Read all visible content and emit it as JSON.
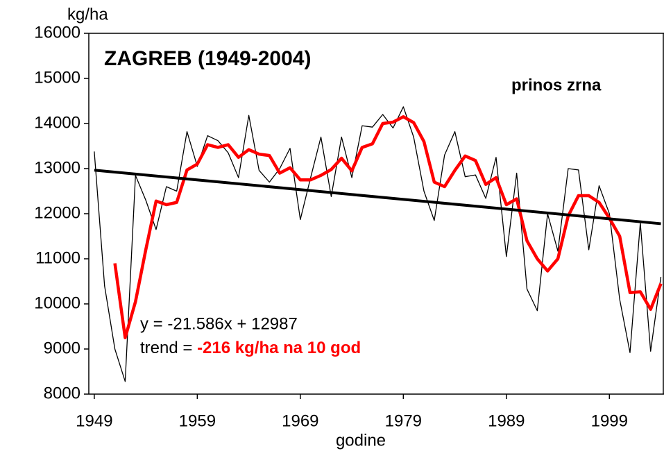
{
  "chart_data": {
    "type": "line",
    "title": "ZAGREB (1949-2004)",
    "y_label": "kg/ha",
    "x_label": "godine",
    "annotation": "prinos zrna",
    "equation": "y = -21.586x + 12987",
    "trend_label": "trend = ",
    "trend_value": "-216 kg/ha na 10 god",
    "x": [
      1949,
      1950,
      1951,
      1952,
      1953,
      1954,
      1955,
      1956,
      1957,
      1958,
      1959,
      1960,
      1961,
      1962,
      1963,
      1964,
      1965,
      1966,
      1967,
      1968,
      1969,
      1970,
      1971,
      1972,
      1973,
      1974,
      1975,
      1976,
      1977,
      1978,
      1979,
      1980,
      1981,
      1982,
      1983,
      1984,
      1985,
      1986,
      1987,
      1988,
      1989,
      1990,
      1991,
      1992,
      1993,
      1994,
      1995,
      1996,
      1997,
      1998,
      1999,
      2000,
      2001,
      2002,
      2003,
      2004
    ],
    "series": [
      {
        "color": "#000000",
        "width": 1.3,
        "values": [
          13380,
          10400,
          9000,
          8280,
          12850,
          12300,
          11650,
          12600,
          12500,
          13820,
          13050,
          13730,
          13620,
          13350,
          12800,
          14180,
          12960,
          12700,
          13000,
          13450,
          11870,
          12800,
          13700,
          12380,
          13700,
          12800,
          13950,
          13920,
          14200,
          13900,
          14370,
          13700,
          12500,
          11850,
          13300,
          13820,
          12820,
          12860,
          12340,
          13250,
          11050,
          12900,
          10330,
          9850,
          12000,
          11170,
          13000,
          12970,
          11200,
          12620,
          12000,
          10100,
          8920,
          11800,
          8950,
          10600
        ]
      },
      {
        "color": "#ff0000",
        "width": 4.5,
        "values": [
          null,
          null,
          10900,
          9250,
          10050,
          11200,
          12280,
          12200,
          12250,
          12970,
          13100,
          13530,
          13470,
          13530,
          13250,
          13420,
          13320,
          13290,
          12900,
          13020,
          12750,
          12750,
          12850,
          12980,
          13230,
          12950,
          13470,
          13550,
          14000,
          14030,
          14150,
          14020,
          13600,
          12700,
          12600,
          12960,
          13280,
          13180,
          12650,
          12800,
          12200,
          12330,
          11400,
          11000,
          10730,
          11000,
          11950,
          12400,
          12400,
          12250,
          11900,
          11500,
          10250,
          10270,
          9880,
          10450
        ]
      },
      {
        "color": "#000000",
        "width": 4,
        "x": [
          1949,
          2004
        ],
        "values": [
          12965,
          11778
        ]
      }
    ],
    "xlim": [
      1948.47,
      2004.3
    ],
    "xticks": [
      1949,
      1959,
      1969,
      1979,
      1989,
      1999
    ],
    "ylim": [
      8000,
      16000
    ],
    "yticks": [
      8000,
      9000,
      10000,
      11000,
      12000,
      13000,
      14000,
      15000,
      16000
    ],
    "grid": false
  }
}
